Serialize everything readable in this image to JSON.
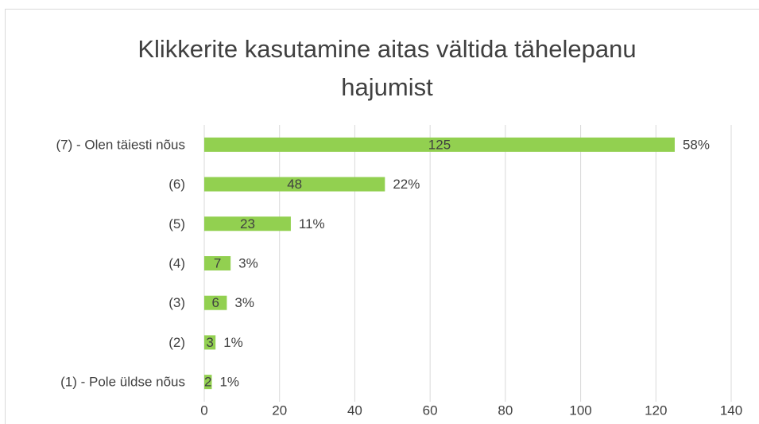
{
  "chart_data": {
    "type": "barh",
    "title": "Klikkerite kasutamine aitas vältida tähelepanu hajumist",
    "categories": [
      "(7) - Olen täiesti nõus",
      "(6)",
      "(5)",
      "(4)",
      "(3)",
      "(2)",
      "(1) - Pole üldse nõus"
    ],
    "values": [
      125,
      48,
      23,
      7,
      6,
      3,
      2
    ],
    "percent_labels": [
      "58%",
      "22%",
      "11%",
      "3%",
      "3%",
      "1%",
      "1%"
    ],
    "color": "#92d050",
    "xlim": [
      0,
      140
    ],
    "xticks": [
      0,
      20,
      40,
      60,
      80,
      100,
      120,
      140
    ],
    "grid": true
  }
}
